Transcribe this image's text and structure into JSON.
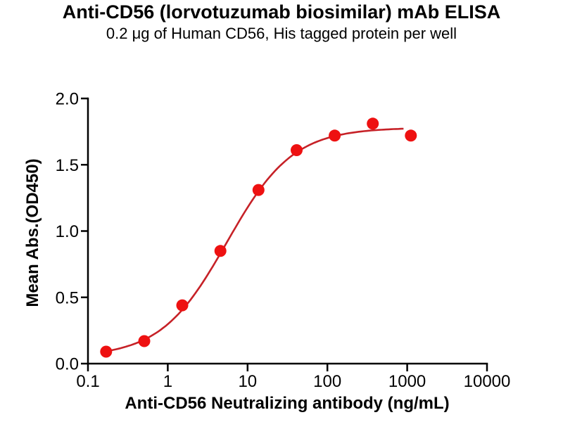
{
  "chart_data": {
    "type": "scatter",
    "title": "Anti-CD56 (lorvotuzumab biosimilar) mAb ELISA",
    "subtitle": "0.2 μg of Human CD56, His tagged protein per well",
    "xlabel": "Anti-CD56 Neutralizing antibody (ng/mL)",
    "ylabel": "Mean Abs.(OD450)",
    "x_scale": "log10",
    "xlim": [
      0.1,
      10000
    ],
    "ylim": [
      0.0,
      2.0
    ],
    "grid": false,
    "legend": "none",
    "x_ticks": {
      "values": [
        0.1,
        1,
        10,
        100,
        1000,
        10000
      ],
      "labels": [
        "0.1",
        "1",
        "10",
        "100",
        "1000",
        "10000"
      ]
    },
    "y_ticks": {
      "values": [
        0.0,
        0.5,
        1.0,
        1.5,
        2.0
      ],
      "labels": [
        "0.0",
        "0.5",
        "1.0",
        "1.5",
        "2.0"
      ]
    },
    "series": [
      {
        "x_ng_per_ml": [
          0.169,
          0.508,
          1.52,
          4.57,
          13.7,
          41.2,
          123.5,
          370.4,
          1111
        ],
        "y_od450": [
          0.09,
          0.17,
          0.44,
          0.85,
          1.31,
          1.61,
          1.72,
          1.81,
          1.72
        ]
      }
    ],
    "fit_curve": {
      "model": "4PL",
      "bottom": 0.05,
      "top": 1.78,
      "ec50_ng_per_ml": 5.5,
      "hill": 1.05,
      "x_start": 0.169,
      "x_end": 900
    },
    "colors": {
      "point": "#ee1111",
      "line": "#c62127",
      "axis": "#000000",
      "text": "#000000"
    }
  }
}
